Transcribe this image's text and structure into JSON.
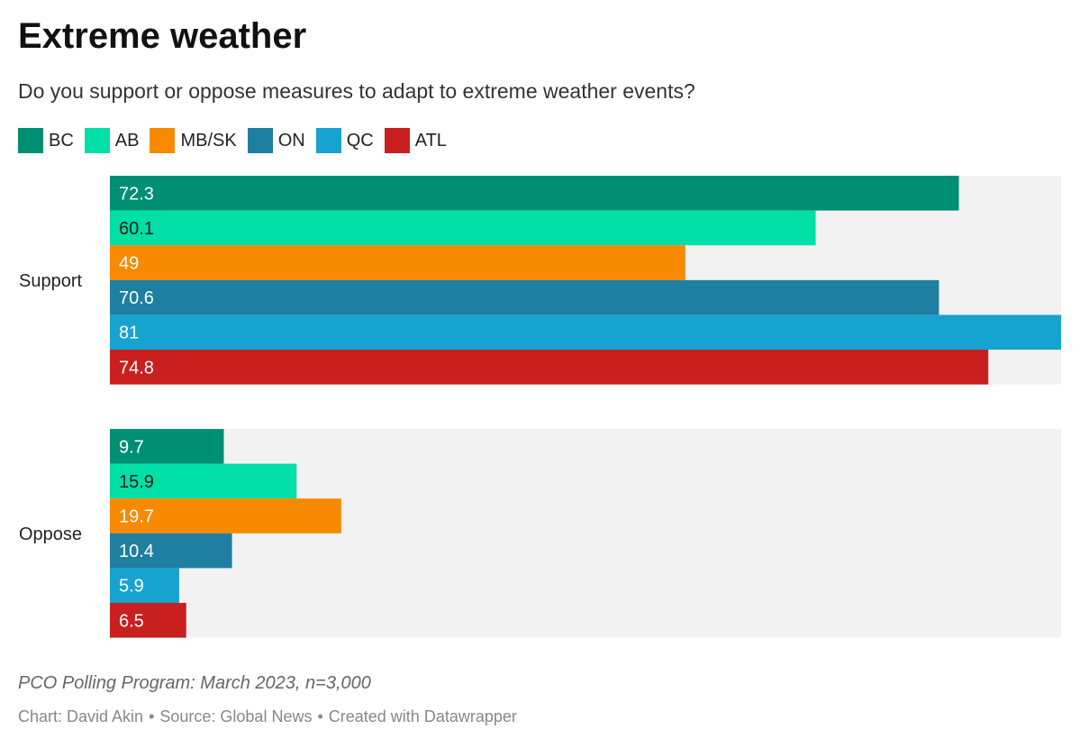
{
  "header": {
    "title": "Extreme weather",
    "subtitle": "Do you support or oppose measures to adapt to extreme weather events?"
  },
  "legend": [
    {
      "label": "BC",
      "color": "#008f73"
    },
    {
      "label": "AB",
      "color": "#00dfa6"
    },
    {
      "label": "MB/SK",
      "color": "#f78a00"
    },
    {
      "label": "ON",
      "color": "#1e7fa0"
    },
    {
      "label": "QC",
      "color": "#17a3d0"
    },
    {
      "label": "ATL",
      "color": "#c91f1f"
    }
  ],
  "chart_data": {
    "type": "bar",
    "orientation": "horizontal",
    "categories": [
      "Support",
      "Oppose"
    ],
    "series": [
      {
        "name": "BC",
        "values": [
          72.3,
          9.7
        ],
        "color": "#008f73",
        "label_color": "#ffffff"
      },
      {
        "name": "AB",
        "values": [
          60.1,
          15.9
        ],
        "color": "#00dfa6",
        "label_color": "#1a1a1a"
      },
      {
        "name": "MB/SK",
        "values": [
          49,
          19.7
        ],
        "color": "#f78a00",
        "label_color": "#ffffff"
      },
      {
        "name": "ON",
        "values": [
          70.6,
          10.4
        ],
        "color": "#1e7fa0",
        "label_color": "#ffffff"
      },
      {
        "name": "QC",
        "values": [
          81,
          5.9
        ],
        "color": "#17a3d0",
        "label_color": "#ffffff"
      },
      {
        "name": "ATL",
        "values": [
          74.8,
          6.5
        ],
        "color": "#c91f1f",
        "label_color": "#ffffff"
      }
    ],
    "xlim": [
      0,
      81
    ],
    "background": "#f2f2f2",
    "grid": false,
    "legend_position": "top-left"
  },
  "footer": {
    "note": "PCO Polling Program: March 2023, n=3,000",
    "credit": "Chart: David Akin",
    "source": "Source: Global News",
    "tool": "Created with Datawrapper",
    "separator": "•"
  }
}
